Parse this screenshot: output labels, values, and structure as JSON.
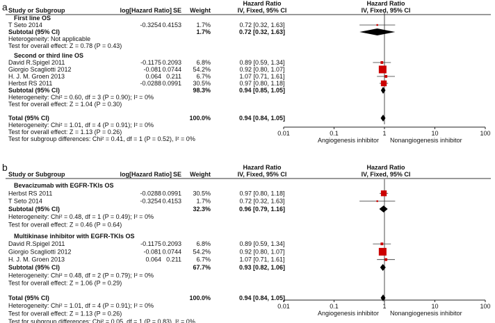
{
  "panels": [
    {
      "label": "a",
      "headers": {
        "study": "Study or Subgroup",
        "loghr": "log[Hazard Ratio]",
        "se": "SE",
        "weight": "Weight",
        "hr_title": "Hazard Ratio",
        "hr_sub": "IV, Fixed, 95% CI",
        "plot_title": "Hazard Ratio",
        "plot_sub": "IV, Fixed, 95% CI"
      },
      "groups": [
        {
          "title": "First line OS",
          "studies": [
            {
              "name": "T Seto 2014",
              "loghr": "-0.3254",
              "se": "0.4153",
              "weight": "1.7%",
              "ci": "0.72 [0.32, 1.63]",
              "hr": 0.72,
              "lo": 0.32,
              "hi": 1.63,
              "w": 1.7
            }
          ],
          "subtotal": {
            "label": "Subtotal (95% CI)",
            "weight": "1.7%",
            "ci": "0.72 [0.32, 1.63]",
            "hr": 0.72,
            "lo": 0.32,
            "hi": 1.63
          },
          "heterogeneity": "Heterogeneity: Not applicable",
          "overall": "Test for overall effect: Z = 0.78 (P = 0.43)"
        },
        {
          "title": "Second or third line OS",
          "studies": [
            {
              "name": "David R.Spigel 2011",
              "loghr": "-0.1175",
              "se": "0.2093",
              "weight": "6.8%",
              "ci": "0.89 [0.59, 1.34]",
              "hr": 0.89,
              "lo": 0.59,
              "hi": 1.34,
              "w": 6.8
            },
            {
              "name": "Giorgio Scagliotti 2012",
              "loghr": "-0.081",
              "se": "0.0744",
              "weight": "54.2%",
              "ci": "0.92 [0.80, 1.07]",
              "hr": 0.92,
              "lo": 0.8,
              "hi": 1.07,
              "w": 54.2
            },
            {
              "name": "H. J. M. Groen 2013",
              "loghr": "0.064",
              "se": "0.211",
              "weight": "6.7%",
              "ci": "1.07 [0.71, 1.61]",
              "hr": 1.07,
              "lo": 0.71,
              "hi": 1.61,
              "w": 6.7
            },
            {
              "name": "Herbst RS 2011",
              "loghr": "-0.0288",
              "se": "0.0991",
              "weight": "30.5%",
              "ci": "0.97 [0.80, 1.18]",
              "hr": 0.97,
              "lo": 0.8,
              "hi": 1.18,
              "w": 30.5
            }
          ],
          "subtotal": {
            "label": "Subtotal (95% CI)",
            "weight": "98.3%",
            "ci": "0.94 [0.85, 1.05]",
            "hr": 0.94,
            "lo": 0.85,
            "hi": 1.05
          },
          "heterogeneity": "Heterogeneity: Chi² = 0.60, df = 3 (P = 0.90); I² = 0%",
          "overall": "Test for overall effect: Z = 1.04 (P = 0.30)"
        }
      ],
      "total": {
        "label": "Total (95% CI)",
        "weight": "100.0%",
        "ci": "0.94 [0.84, 1.05]",
        "hr": 0.94,
        "lo": 0.84,
        "hi": 1.05
      },
      "footer": [
        "Heterogeneity: Chi² = 1.01, df = 4 (P = 0.91); I² = 0%",
        "Test for overall effect: Z = 1.13 (P = 0.26)",
        "Test for subgroup differences: Chi² = 0.41, df = 1 (P = 0.52), I² = 0%"
      ],
      "axis": {
        "ticks": [
          "0.01",
          "0.1",
          "1",
          "10",
          "100"
        ],
        "left_label": "Angiogenesis inhibitor",
        "right_label": "Nonangiogenesis inhibitor"
      }
    },
    {
      "label": "b",
      "headers": {
        "study": "Study or Subgroup",
        "loghr": "log[Hazard Ratio]",
        "se": "SE",
        "weight": "Weight",
        "hr_title": "Hazard Ratio",
        "hr_sub": "IV, Fixed, 95% CI",
        "plot_title": "Hazard Ratio",
        "plot_sub": "IV, Fixed, 95% CI"
      },
      "groups": [
        {
          "title": "Bevacizumab with EGFR-TKIs OS",
          "studies": [
            {
              "name": "Herbst RS 2011",
              "loghr": "-0.0288",
              "se": "0.0991",
              "weight": "30.5%",
              "ci": "0.97 [0.80, 1.18]",
              "hr": 0.97,
              "lo": 0.8,
              "hi": 1.18,
              "w": 30.5
            },
            {
              "name": "T Seto 2014",
              "loghr": "-0.3254",
              "se": "0.4153",
              "weight": "1.7%",
              "ci": "0.72 [0.32, 1.63]",
              "hr": 0.72,
              "lo": 0.32,
              "hi": 1.63,
              "w": 1.7
            }
          ],
          "subtotal": {
            "label": "Subtotal (95% CI)",
            "weight": "32.3%",
            "ci": "0.96 [0.79, 1.16]",
            "hr": 0.96,
            "lo": 0.79,
            "hi": 1.16
          },
          "heterogeneity": "Heterogeneity: Chi² = 0.48, df = 1 (P = 0.49); I² = 0%",
          "overall": "Test for overall effect: Z = 0.46 (P = 0.64)"
        },
        {
          "title": "Multikinase inhibitor with EGFR-TKIs OS",
          "studies": [
            {
              "name": "David R.Spigel 2011",
              "loghr": "-0.1175",
              "se": "0.2093",
              "weight": "6.8%",
              "ci": "0.89 [0.59, 1.34]",
              "hr": 0.89,
              "lo": 0.59,
              "hi": 1.34,
              "w": 6.8
            },
            {
              "name": "Giorgio Scagliotti 2012",
              "loghr": "-0.081",
              "se": "0.0744",
              "weight": "54.2%",
              "ci": "0.92 [0.80, 1.07]",
              "hr": 0.92,
              "lo": 0.8,
              "hi": 1.07,
              "w": 54.2
            },
            {
              "name": "H. J. M. Groen 2013",
              "loghr": "0.064",
              "se": "0.211",
              "weight": "6.7%",
              "ci": "1.07 [0.71, 1.61]",
              "hr": 1.07,
              "lo": 0.71,
              "hi": 1.61,
              "w": 6.7
            }
          ],
          "subtotal": {
            "label": "Subtotal (95% CI)",
            "weight": "67.7%",
            "ci": "0.93 [0.82, 1.06]",
            "hr": 0.93,
            "lo": 0.82,
            "hi": 1.06
          },
          "heterogeneity": "Heterogeneity: Chi² = 0.48, df = 2 (P = 0.79); I² = 0%",
          "overall": "Test for overall effect: Z = 1.06 (P = 0.29)"
        }
      ],
      "total": {
        "label": "Total (95% CI)",
        "weight": "100.0%",
        "ci": "0.94 [0.84, 1.05]",
        "hr": 0.94,
        "lo": 0.84,
        "hi": 1.05
      },
      "footer": [
        "Heterogeneity: Chi² = 1.01, df = 4 (P = 0.91); I² = 0%",
        "Test for overall effect: Z = 1.13 (P = 0.26)",
        "Test for subgroup differences: Chi² = 0.05, df = 1 (P = 0.83), I² = 0%"
      ],
      "axis": {
        "ticks": [
          "0.01",
          "0.1",
          "1",
          "10",
          "100"
        ],
        "left_label": "Angiogenesis inhibitor",
        "right_label": "Nonangiogenesis inhibitor"
      }
    }
  ],
  "colors": {
    "study_square": "#cc0000",
    "diamond": "#000000",
    "ci_line": "#333333",
    "axis": "#222222",
    "header_rule": "#333333"
  },
  "chart_data": [
    {
      "type": "scatter",
      "title": "a",
      "xlabel": "Hazard Ratio IV, Fixed, 95% CI",
      "xscale": "log",
      "xlim": [
        0.01,
        100
      ],
      "series": [
        {
          "name": "First line OS",
          "values": [
            {
              "study": "T Seto 2014",
              "hr": 0.72,
              "lo": 0.32,
              "hi": 1.63,
              "weight": 1.7
            }
          ],
          "subtotal": {
            "hr": 0.72,
            "lo": 0.32,
            "hi": 1.63
          }
        },
        {
          "name": "Second or third line OS",
          "values": [
            {
              "study": "David R.Spigel 2011",
              "hr": 0.89,
              "lo": 0.59,
              "hi": 1.34,
              "weight": 6.8
            },
            {
              "study": "Giorgio Scagliotti 2012",
              "hr": 0.92,
              "lo": 0.8,
              "hi": 1.07,
              "weight": 54.2
            },
            {
              "study": "H. J. M. Groen 2013",
              "hr": 1.07,
              "lo": 0.71,
              "hi": 1.61,
              "weight": 6.7
            },
            {
              "study": "Herbst RS 2011",
              "hr": 0.97,
              "lo": 0.8,
              "hi": 1.18,
              "weight": 30.5
            }
          ],
          "subtotal": {
            "hr": 0.94,
            "lo": 0.85,
            "hi": 1.05
          }
        }
      ],
      "total": {
        "hr": 0.94,
        "lo": 0.84,
        "hi": 1.05
      }
    },
    {
      "type": "scatter",
      "title": "b",
      "xlabel": "Hazard Ratio IV, Fixed, 95% CI",
      "xscale": "log",
      "xlim": [
        0.01,
        100
      ],
      "series": [
        {
          "name": "Bevacizumab with EGFR-TKIs OS",
          "values": [
            {
              "study": "Herbst RS 2011",
              "hr": 0.97,
              "lo": 0.8,
              "hi": 1.18,
              "weight": 30.5
            },
            {
              "study": "T Seto 2014",
              "hr": 0.72,
              "lo": 0.32,
              "hi": 1.63,
              "weight": 1.7
            }
          ],
          "subtotal": {
            "hr": 0.96,
            "lo": 0.79,
            "hi": 1.16
          }
        },
        {
          "name": "Multikinase inhibitor with EGFR-TKIs OS",
          "values": [
            {
              "study": "David R.Spigel 2011",
              "hr": 0.89,
              "lo": 0.59,
              "hi": 1.34,
              "weight": 6.8
            },
            {
              "study": "Giorgio Scagliotti 2012",
              "hr": 0.92,
              "lo": 0.8,
              "hi": 1.07,
              "weight": 54.2
            },
            {
              "study": "H. J. M. Groen 2013",
              "hr": 1.07,
              "lo": 0.71,
              "hi": 1.61,
              "weight": 6.7
            }
          ],
          "subtotal": {
            "hr": 0.93,
            "lo": 0.82,
            "hi": 1.06
          }
        }
      ],
      "total": {
        "hr": 0.94,
        "lo": 0.84,
        "hi": 1.05
      }
    }
  ]
}
